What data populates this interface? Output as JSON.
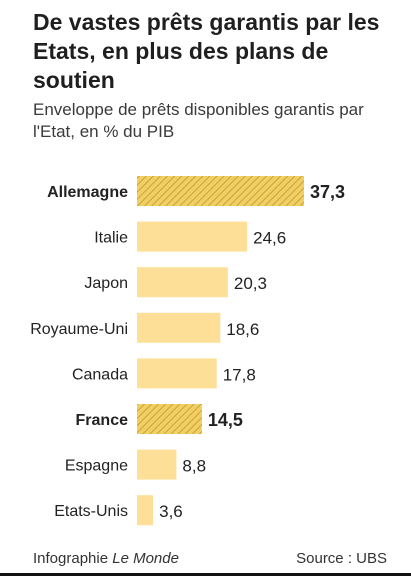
{
  "title": "De vastes prêts garantis par les Etats, en plus des plans de soutien",
  "subtitle": "Enveloppe de prêts disponibles garantis par l'Etat, en % du PIB",
  "footer": {
    "credit_prefix": "Infographie",
    "credit_brand": "Le Monde",
    "source": "Source : UBS"
  },
  "colors": {
    "bar": "#fddf98",
    "bar_highlight": "#f2cf66",
    "hatch": "#c9a62c",
    "text": "#222222"
  },
  "chart_data": {
    "type": "bar",
    "orientation": "horizontal",
    "title": "De vastes prêts garantis par les Etats, en plus des plans de soutien",
    "subtitle": "Enveloppe de prêts disponibles garantis par l'Etat, en % du PIB",
    "categories": [
      "Allemagne",
      "Italie",
      "Japon",
      "Royaume-Uni",
      "Canada",
      "France",
      "Espagne",
      "Etats-Unis"
    ],
    "values": [
      37.3,
      24.6,
      20.3,
      18.6,
      17.8,
      14.5,
      8.8,
      3.6
    ],
    "value_labels": [
      "37,3",
      "24,6",
      "20,3",
      "18,6",
      "17,8",
      "14,5",
      "8,8",
      "3,6"
    ],
    "highlighted": [
      "Allemagne",
      "France"
    ],
    "xlim": [
      0,
      37.3
    ],
    "grid": false,
    "legend": "none"
  }
}
